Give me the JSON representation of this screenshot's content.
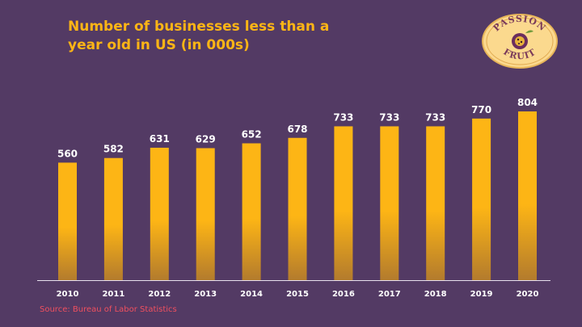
{
  "colors": {
    "background": "#533a64",
    "title": "#fdb515",
    "bar_top": "#fdb515",
    "bar_bottom": "#b37b2d",
    "label": "#ffffff",
    "source": "#f0505f",
    "logo_fill": "#fbd98e",
    "logo_text": "#7a3a5a"
  },
  "chart_data": {
    "type": "bar",
    "title": "Number of businesses less than a year old in US (in 000s)",
    "categories": [
      "2010",
      "2011",
      "2012",
      "2013",
      "2014",
      "2015",
      "2016",
      "2017",
      "2018",
      "2019",
      "2020"
    ],
    "values": [
      560,
      582,
      631,
      629,
      652,
      678,
      733,
      733,
      733,
      770,
      804
    ],
    "xlabel": "",
    "ylabel": "",
    "grid": false,
    "data_labels": true
  },
  "logo": {
    "line1": "PASSION",
    "line2": "FRUIT"
  },
  "source": "Source: Bureau of Labor Statistics"
}
